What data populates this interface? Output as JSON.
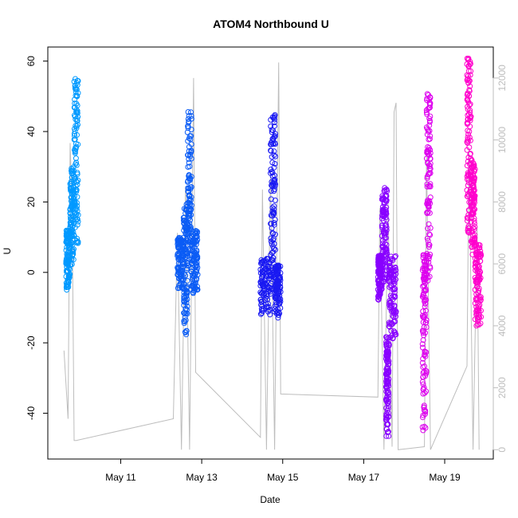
{
  "chart_data": {
    "type": "scatter",
    "title": "ATOM4 Northbound U",
    "xlabel": "Date",
    "ylabel": "U",
    "x_ticks": [
      "May 11",
      "May 13",
      "May 15",
      "May 17",
      "May 19"
    ],
    "x_tick_values": [
      11,
      13,
      15,
      17,
      19
    ],
    "xlim": [
      9.2,
      20.2
    ],
    "ylim": [
      -53,
      64
    ],
    "y_ticks": [
      -40,
      -20,
      0,
      20,
      40,
      60
    ],
    "y2lim": [
      -300,
      13000
    ],
    "y2_ticks": [
      0,
      2000,
      4000,
      6000,
      8000,
      10000,
      12000
    ],
    "grid": false,
    "colors": {
      "series": [
        "#0099ff",
        "#0b5cf5",
        "#1a1af2",
        "#8800ff",
        "#dd00ee",
        "#ff00cc"
      ],
      "secondary_line": "#bdbdbd"
    },
    "series": [
      {
        "x_start": 9.65,
        "x_end": 9.95,
        "clusters": [
          {
            "x": [
              9.65,
              9.75
            ],
            "y": [
              -5,
              12
            ]
          },
          {
            "x": [
              9.75,
              9.85
            ],
            "y": [
              2,
              30
            ]
          },
          {
            "x": [
              9.85,
              9.95
            ],
            "y": [
              8,
              55
            ]
          }
        ]
      },
      {
        "x_start": 12.4,
        "x_end": 12.9,
        "clusters": [
          {
            "x": [
              12.4,
              12.55
            ],
            "y": [
              -5,
              10
            ]
          },
          {
            "x": [
              12.55,
              12.65
            ],
            "y": [
              -18,
              20
            ]
          },
          {
            "x": [
              12.65,
              12.75
            ],
            "y": [
              0,
              46
            ]
          },
          {
            "x": [
              12.75,
              12.9
            ],
            "y": [
              -6,
              12
            ]
          }
        ]
      },
      {
        "x_start": 14.45,
        "x_end": 14.95,
        "clusters": [
          {
            "x": [
              14.45,
              14.7
            ],
            "y": [
              -12,
              4
            ]
          },
          {
            "x": [
              14.7,
              14.82
            ],
            "y": [
              -5,
              45
            ]
          },
          {
            "x": [
              14.8,
              14.95
            ],
            "y": [
              -13,
              2
            ]
          }
        ]
      },
      {
        "x_start": 17.35,
        "x_end": 17.8,
        "clusters": [
          {
            "x": [
              17.35,
              17.45
            ],
            "y": [
              -8,
              5
            ]
          },
          {
            "x": [
              17.45,
              17.58
            ],
            "y": [
              -5,
              24
            ]
          },
          {
            "x": [
              17.55,
              17.62
            ],
            "y": [
              -48,
              -18
            ]
          },
          {
            "x": [
              17.62,
              17.8
            ],
            "y": [
              -22,
              5
            ]
          }
        ]
      },
      {
        "x_start": 18.45,
        "x_end": 18.65,
        "clusters": [
          {
            "x": [
              18.45,
              18.55
            ],
            "y": [
              -45,
              5
            ]
          },
          {
            "x": [
              18.55,
              18.65
            ],
            "y": [
              -3,
              51
            ]
          }
        ]
      },
      {
        "x_start": 19.55,
        "x_end": 19.9,
        "clusters": [
          {
            "x": [
              19.55,
              19.65
            ],
            "y": [
              10,
              61
            ]
          },
          {
            "x": [
              19.65,
              19.75
            ],
            "y": [
              5,
              32
            ]
          },
          {
            "x": [
              19.75,
              19.9
            ],
            "y": [
              -16,
              8
            ]
          }
        ]
      }
    ],
    "secondary_series": {
      "axis": "right",
      "values": [
        {
          "x": 9.6,
          "y": 3200
        },
        {
          "x": 9.7,
          "y": 1000
        },
        {
          "x": 9.75,
          "y": 9900
        },
        {
          "x": 9.8,
          "y": 7800
        },
        {
          "x": 9.85,
          "y": 300
        },
        {
          "x": 9.9,
          "y": 300
        },
        {
          "x": 12.3,
          "y": 1000
        },
        {
          "x": 12.4,
          "y": 7000
        },
        {
          "x": 12.5,
          "y": 0
        },
        {
          "x": 12.6,
          "y": 8500
        },
        {
          "x": 12.7,
          "y": 0
        },
        {
          "x": 12.8,
          "y": 12000
        },
        {
          "x": 12.85,
          "y": 2500
        },
        {
          "x": 14.45,
          "y": 400
        },
        {
          "x": 14.5,
          "y": 8400
        },
        {
          "x": 14.6,
          "y": 0
        },
        {
          "x": 14.7,
          "y": 9000
        },
        {
          "x": 14.8,
          "y": 0
        },
        {
          "x": 14.9,
          "y": 12500
        },
        {
          "x": 14.95,
          "y": 1800
        },
        {
          "x": 17.35,
          "y": 1700
        },
        {
          "x": 17.4,
          "y": 7800
        },
        {
          "x": 17.5,
          "y": 0
        },
        {
          "x": 17.6,
          "y": 8000
        },
        {
          "x": 17.7,
          "y": 100
        },
        {
          "x": 17.75,
          "y": 10900
        },
        {
          "x": 17.8,
          "y": 11200
        },
        {
          "x": 17.85,
          "y": 0
        },
        {
          "x": 18.5,
          "y": 100
        },
        {
          "x": 18.55,
          "y": 9500
        },
        {
          "x": 18.65,
          "y": 0
        },
        {
          "x": 19.55,
          "y": 2700
        },
        {
          "x": 19.6,
          "y": 9700
        },
        {
          "x": 19.7,
          "y": 0
        },
        {
          "x": 19.8,
          "y": 7200
        },
        {
          "x": 19.85,
          "y": 0
        }
      ]
    }
  }
}
